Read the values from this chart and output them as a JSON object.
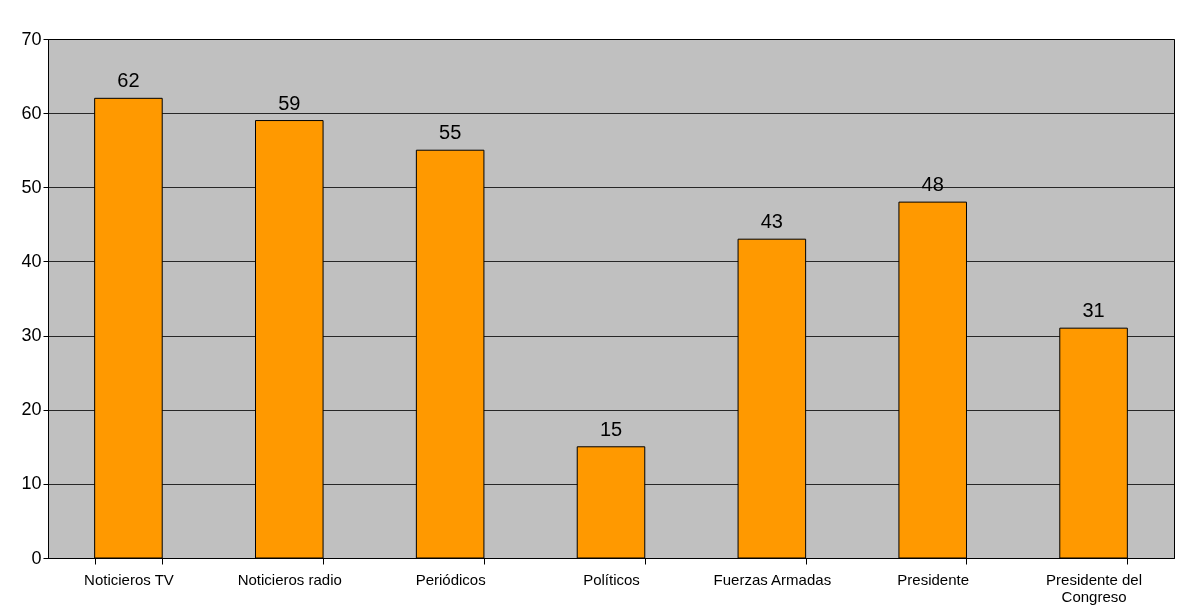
{
  "chart_data": {
    "type": "bar",
    "categories": [
      "Noticieros TV",
      "Noticieros radio",
      "Periódicos",
      "Políticos",
      "Fuerzas Armadas",
      "Presidente",
      "Presidente del Congreso"
    ],
    "values": [
      62,
      59,
      55,
      15,
      43,
      48,
      31
    ],
    "color": "#ff9900",
    "ylim": [
      0,
      70
    ],
    "yticks": [
      0,
      10,
      20,
      30,
      40,
      50,
      60,
      70
    ],
    "grid": "y",
    "data_labels": true,
    "legend": false
  }
}
